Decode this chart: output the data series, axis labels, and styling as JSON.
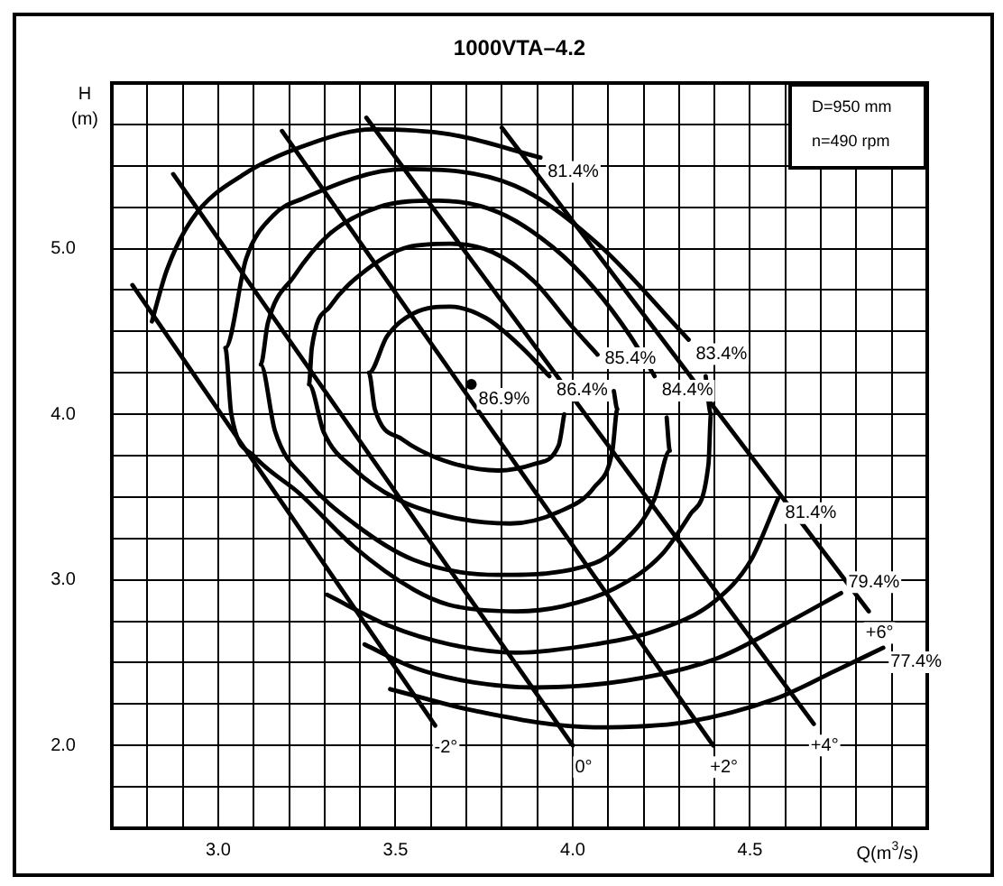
{
  "chart_data": {
    "type": "line",
    "title": "1000VTA–4.2",
    "xlabel": "Q(m$^{3}$/s)",
    "ylabel": "H\n(m)",
    "annotations": [
      "D=950 mm",
      "n=490 rpm"
    ],
    "xlim": [
      2.7,
      5.0
    ],
    "xticks": [
      {
        "value": 2.7,
        "label": null
      },
      {
        "value": 2.8,
        "label": null
      },
      {
        "value": 2.9,
        "label": null
      },
      {
        "value": 3.0,
        "label": "3.0"
      },
      {
        "value": 3.1,
        "label": null
      },
      {
        "value": 3.2,
        "label": null
      },
      {
        "value": 3.3,
        "label": null
      },
      {
        "value": 3.4,
        "label": null
      },
      {
        "value": 3.5,
        "label": "3.5"
      },
      {
        "value": 3.6,
        "label": null
      },
      {
        "value": 3.7,
        "label": null
      },
      {
        "value": 3.8,
        "label": null
      },
      {
        "value": 3.9,
        "label": null
      },
      {
        "value": 4.0,
        "label": "4.0"
      },
      {
        "value": 4.1,
        "label": null
      },
      {
        "value": 4.2,
        "label": null
      },
      {
        "value": 4.3,
        "label": null
      },
      {
        "value": 4.4,
        "label": null
      },
      {
        "value": 4.5,
        "label": "4.5"
      },
      {
        "value": 4.6,
        "label": null
      },
      {
        "value": 4.7,
        "label": null
      },
      {
        "value": 4.8,
        "label": null
      },
      {
        "value": 4.9,
        "label": null
      },
      {
        "value": 5.0,
        "label": null
      }
    ],
    "ylim": [
      1.5,
      6.0
    ],
    "yticks": [
      {
        "value": 1.5,
        "label": null
      },
      {
        "value": 1.75,
        "label": null
      },
      {
        "value": 2.0,
        "label": "2.0"
      },
      {
        "value": 2.25,
        "label": null
      },
      {
        "value": 2.5,
        "label": null
      },
      {
        "value": 2.75,
        "label": null
      },
      {
        "value": 3.0,
        "label": "3.0"
      },
      {
        "value": 3.25,
        "label": null
      },
      {
        "value": 3.5,
        "label": null
      },
      {
        "value": 3.75,
        "label": null
      },
      {
        "value": 4.0,
        "label": "4.0"
      },
      {
        "value": 4.25,
        "label": null
      },
      {
        "value": 4.5,
        "label": null
      },
      {
        "value": 4.75,
        "label": null
      },
      {
        "value": 5.0,
        "label": "5.0"
      },
      {
        "value": 5.25,
        "label": null
      },
      {
        "value": 5.5,
        "label": null
      },
      {
        "value": 5.75,
        "label": null
      },
      {
        "value": 6.0,
        "label": null
      }
    ],
    "grid": true,
    "legend": false,
    "marker": "none",
    "line_style": "solid",
    "series": [
      {
        "name": "86.4%",
        "color": "#000000",
        "x": [
          3.976,
          3.96,
          3.892,
          3.79,
          3.637,
          3.518,
          3.442,
          3.425,
          3.476,
          3.552,
          3.654,
          3.756,
          3.858,
          3.934
        ],
        "values": [
          4.0,
          3.81,
          3.7,
          3.66,
          3.72,
          3.85,
          4.03,
          4.25,
          4.47,
          4.61,
          4.65,
          4.58,
          4.4,
          4.23
        ]
      },
      {
        "name": "85.4%",
        "color": "#000000",
        "x": [
          4.116,
          4.126,
          4.112,
          4.061,
          3.96,
          3.824,
          3.654,
          3.502,
          3.383,
          3.298,
          3.256,
          3.264,
          3.315,
          3.417,
          3.536,
          3.654,
          3.773,
          3.892,
          3.994,
          4.07
        ],
        "values": [
          4.14,
          4.03,
          3.78,
          3.56,
          3.41,
          3.34,
          3.38,
          3.49,
          3.67,
          3.89,
          4.18,
          4.4,
          4.65,
          4.87,
          5.01,
          5.03,
          4.98,
          4.8,
          4.54,
          4.36
        ]
      },
      {
        "name": "84.4%",
        "color": "#000000",
        "x": [
          4.265,
          4.274,
          4.231,
          4.129,
          4.061,
          3.79,
          3.552,
          3.383,
          3.25,
          3.16,
          3.12,
          3.14,
          3.213,
          3.315,
          3.451,
          3.62,
          3.79,
          3.943,
          4.061,
          4.163,
          4.231
        ],
        "values": [
          3.98,
          3.78,
          3.49,
          3.2,
          3.1,
          3.03,
          3.12,
          3.34,
          3.6,
          3.9,
          4.3,
          4.55,
          4.83,
          5.09,
          5.25,
          5.29,
          5.22,
          5.01,
          4.76,
          4.47,
          4.23
        ]
      },
      {
        "name": "83.4%",
        "color": "#000000",
        "x": [
          4.375,
          4.39,
          4.383,
          4.333,
          4.25,
          4.12,
          3.97,
          3.841,
          3.65,
          3.552,
          3.383,
          3.23,
          3.1,
          3.037,
          3.02,
          3.079,
          3.155,
          3.236,
          3.527,
          3.836,
          4.07,
          4.327
        ],
        "values": [
          4.23,
          4.0,
          3.7,
          3.4,
          3.15,
          2.95,
          2.84,
          2.81,
          2.85,
          2.94,
          3.2,
          3.52,
          3.75,
          4.0,
          4.4,
          4.94,
          5.2,
          5.3,
          5.48,
          5.38,
          5.03,
          4.45
        ]
      },
      {
        "name": "81.4%",
        "color": "#000000",
        "x": [
          2.813,
          2.855,
          2.927,
          3.073,
          3.254,
          3.436,
          3.654,
          3.909
        ],
        "values": [
          4.56,
          4.87,
          5.18,
          5.45,
          5.63,
          5.72,
          5.69,
          5.55
        ]
      },
      {
        "name": "81.4%",
        "color": "#000000",
        "x": [
          3.307,
          3.485,
          3.654,
          3.841,
          4.061,
          4.231,
          4.4,
          4.503,
          4.579
        ],
        "values": [
          2.91,
          2.72,
          2.61,
          2.56,
          2.61,
          2.69,
          2.87,
          3.12,
          3.49
        ]
      },
      {
        "name": "79.4%",
        "color": "#000000",
        "x": [
          3.413,
          3.552,
          3.722,
          3.892,
          4.146,
          4.4,
          4.604,
          4.757
        ],
        "values": [
          2.61,
          2.47,
          2.38,
          2.35,
          2.39,
          2.52,
          2.74,
          2.92
        ]
      },
      {
        "name": "77.4%",
        "color": "#000000",
        "x": [
          3.485,
          3.722,
          4.061,
          4.316,
          4.57,
          4.74,
          4.876
        ],
        "values": [
          2.34,
          2.21,
          2.11,
          2.14,
          2.28,
          2.45,
          2.59
        ]
      },
      {
        "name": "-2°",
        "color": "#000000",
        "x": [
          2.758,
          3.612
        ],
        "values": [
          4.78,
          2.12
        ]
      },
      {
        "name": "0°",
        "color": "#000000",
        "x": [
          2.873,
          4.0
        ],
        "values": [
          5.45,
          2.0
        ]
      },
      {
        "name": "+2°",
        "color": "#000000",
        "x": [
          3.18,
          4.396
        ],
        "values": [
          5.71,
          2.0
        ]
      },
      {
        "name": "+4°",
        "color": "#000000",
        "x": [
          3.418,
          4.68
        ],
        "values": [
          5.79,
          2.13
        ]
      },
      {
        "name": "+6°",
        "color": "#000000",
        "x": [
          3.8,
          4.835
        ],
        "values": [
          5.73,
          2.81
        ]
      },
      {
        "name": "86.9%",
        "type": "scatter",
        "marker": "circle",
        "color": "#000000",
        "x": [
          3.714
        ],
        "values": [
          4.18
        ]
      }
    ]
  }
}
